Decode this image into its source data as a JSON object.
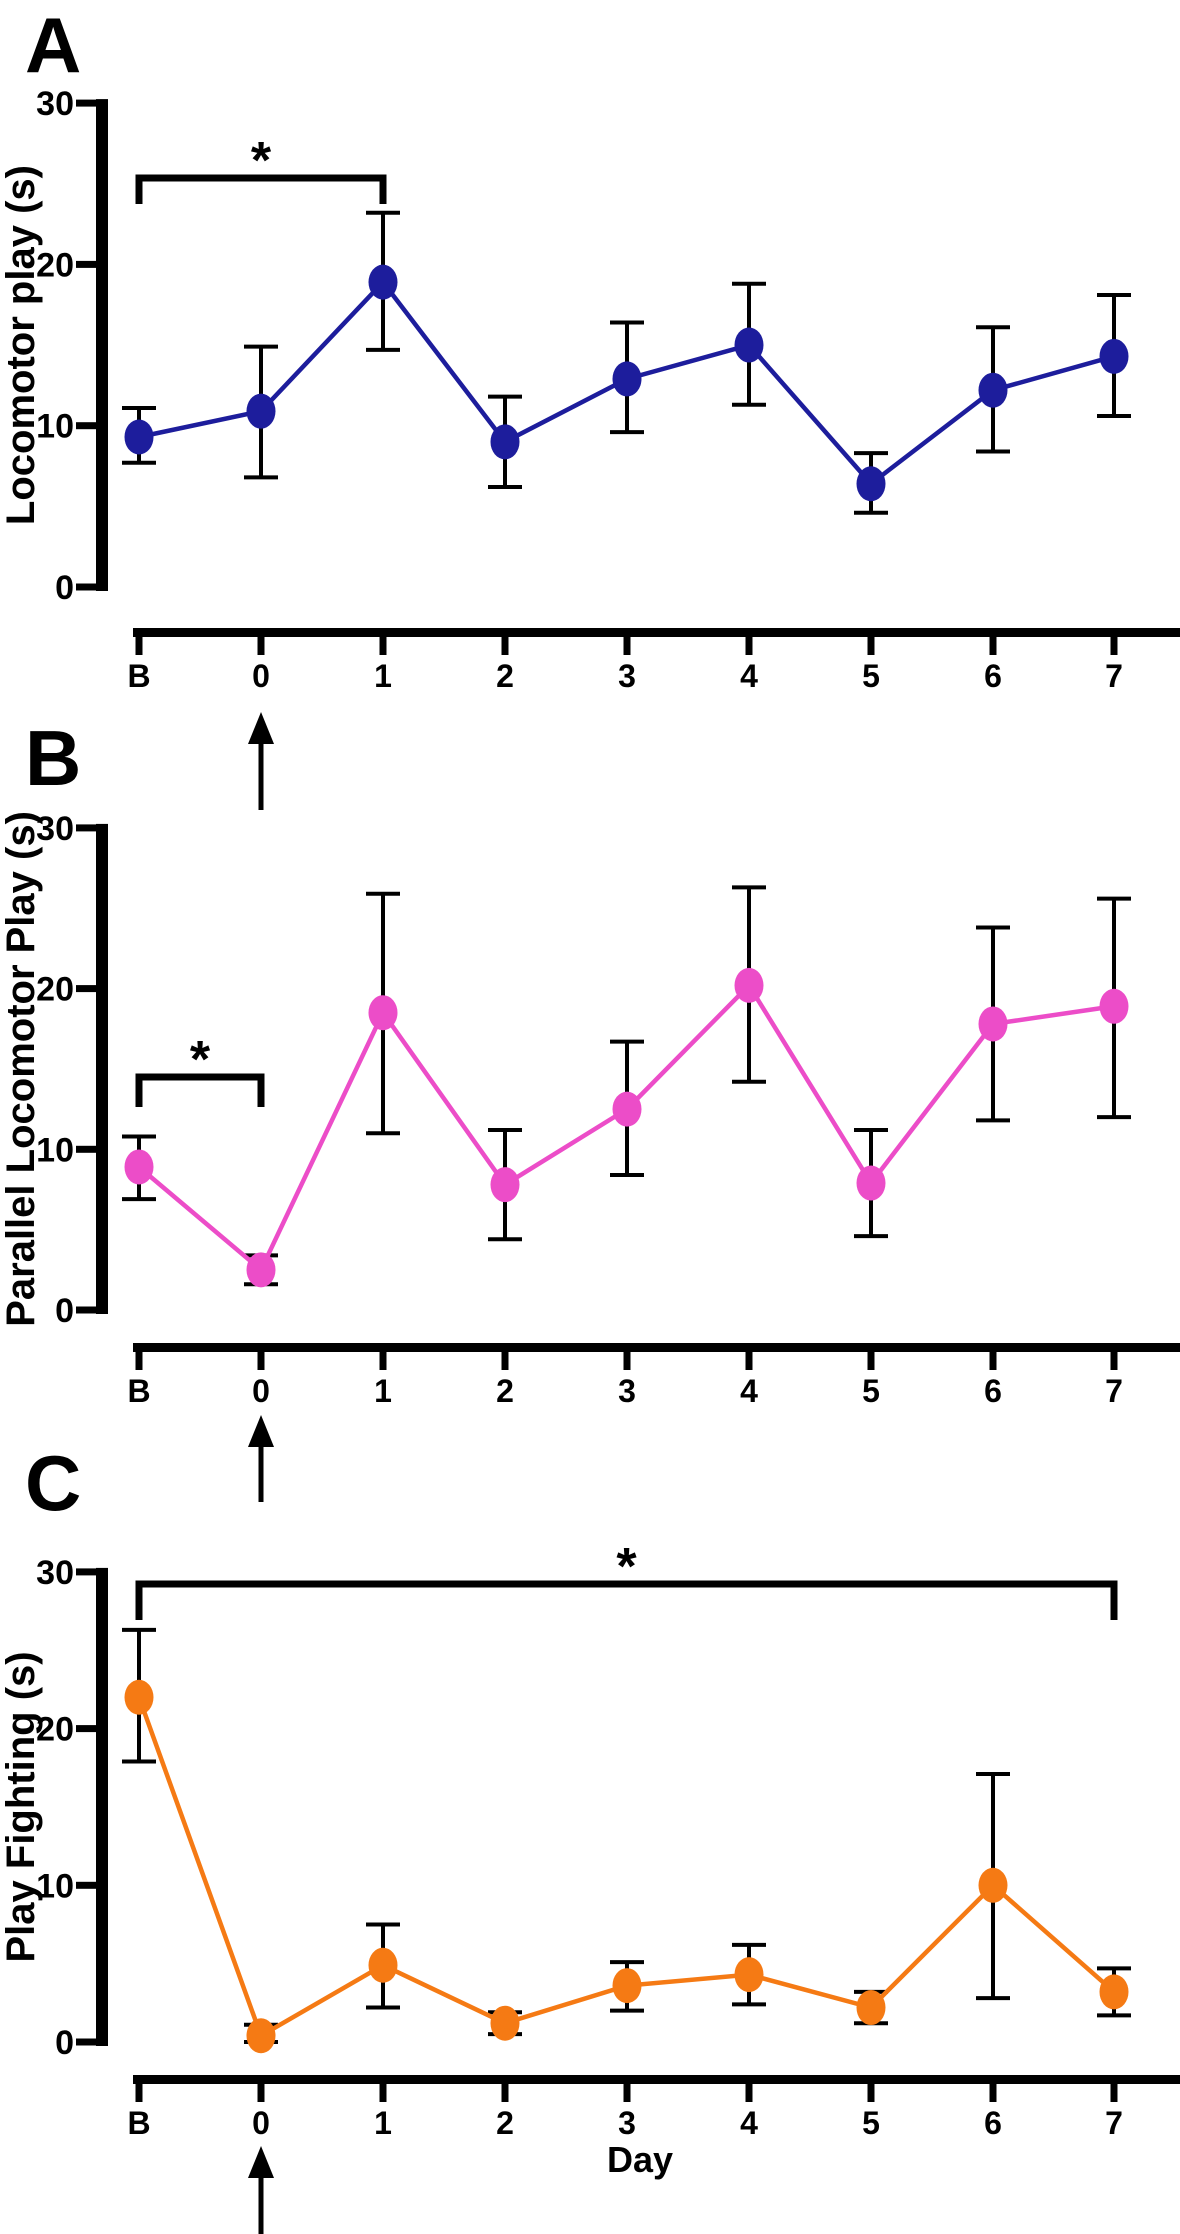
{
  "figure": {
    "background": "#ffffff",
    "axis_color": "#000000",
    "x_tick_labels": [
      "B",
      "0",
      "1",
      "2",
      "3",
      "4",
      "5",
      "6",
      "7"
    ],
    "treatment_arrow_below_category": "0",
    "panel_letters": [
      "A",
      "B",
      "C"
    ]
  },
  "chart_data": [
    {
      "type": "line",
      "panel_letter": "A",
      "title": "",
      "ylabel": "Locomotor play (s)",
      "xlabel": "",
      "categories": [
        "B",
        "0",
        "1",
        "2",
        "3",
        "4",
        "5",
        "6",
        "7"
      ],
      "values": [
        9.3,
        10.9,
        18.9,
        9.0,
        12.9,
        15.0,
        6.4,
        12.2,
        14.3
      ],
      "error_low": [
        7.7,
        6.8,
        14.7,
        6.2,
        9.6,
        11.3,
        4.6,
        8.4,
        10.6
      ],
      "error_high": [
        11.1,
        14.9,
        23.2,
        11.8,
        16.4,
        18.8,
        8.3,
        16.1,
        18.1
      ],
      "ylim": [
        0,
        30
      ],
      "yticks": [
        0,
        10,
        20,
        30
      ],
      "grid": false,
      "legend": "none",
      "color": "#1d1d9c",
      "marker": "circle",
      "significance_bracket": {
        "from": "B",
        "to": "1",
        "label": "*"
      },
      "arrow_at_category": "0"
    },
    {
      "type": "line",
      "panel_letter": "B",
      "title": "",
      "ylabel": "Parallel Locomotor Play (s)",
      "xlabel": "",
      "categories": [
        "B",
        "0",
        "1",
        "2",
        "3",
        "4",
        "5",
        "6",
        "7"
      ],
      "values": [
        8.9,
        2.5,
        18.5,
        7.8,
        12.5,
        20.2,
        7.9,
        17.8,
        18.9
      ],
      "error_low": [
        6.9,
        1.6,
        11.0,
        4.4,
        8.4,
        14.2,
        4.6,
        11.8,
        12.0
      ],
      "error_high": [
        10.8,
        3.4,
        25.9,
        11.2,
        16.7,
        26.3,
        11.2,
        23.8,
        25.6
      ],
      "ylim": [
        0,
        30
      ],
      "yticks": [
        0,
        10,
        20,
        30
      ],
      "grid": false,
      "legend": "none",
      "color": "#ec4dc8",
      "marker": "circle",
      "significance_bracket": {
        "from": "B",
        "to": "0",
        "label": "*"
      },
      "arrow_at_category": "0"
    },
    {
      "type": "line",
      "panel_letter": "C",
      "title": "",
      "ylabel": "Play Fighting (s)",
      "xlabel": "Day",
      "categories": [
        "B",
        "0",
        "1",
        "2",
        "3",
        "4",
        "5",
        "6",
        "7"
      ],
      "values": [
        22.0,
        0.4,
        4.9,
        1.2,
        3.6,
        4.3,
        2.2,
        10.0,
        3.2
      ],
      "error_low": [
        17.9,
        0.0,
        2.2,
        0.5,
        2.0,
        2.4,
        1.2,
        2.8,
        1.7
      ],
      "error_high": [
        26.3,
        1.1,
        7.5,
        1.9,
        5.1,
        6.2,
        3.2,
        17.1,
        4.7
      ],
      "ylim": [
        0,
        30
      ],
      "yticks": [
        0,
        10,
        20,
        30
      ],
      "grid": false,
      "legend": "none",
      "color": "#f57a14",
      "marker": "circle",
      "significance_bracket": {
        "from": "B",
        "to": "7",
        "label": "*"
      },
      "arrow_at_category": "0"
    }
  ]
}
